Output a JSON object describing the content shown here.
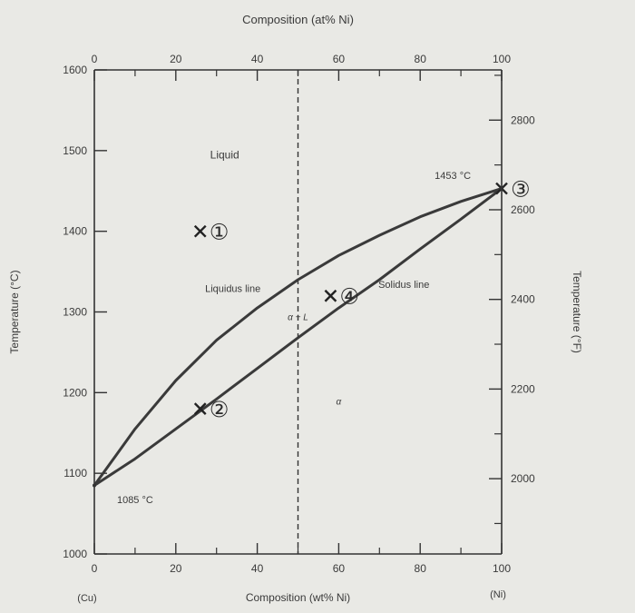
{
  "chart_data": {
    "type": "line",
    "title": "",
    "top_axis": {
      "label": "Composition (at% Ni)",
      "ticks": [
        0,
        20,
        40,
        60,
        80,
        100
      ],
      "tick_labels": [
        "0",
        "20",
        "40",
        "60",
        "80",
        "100"
      ]
    },
    "bottom_axis": {
      "label": "Composition (wt% Ni)",
      "ticks": [
        0,
        20,
        40,
        60,
        80,
        100
      ],
      "tick_labels": [
        "0",
        "20",
        "40",
        "60",
        "80",
        "100"
      ],
      "end_labels": {
        "left": "(Cu)",
        "right": "(Ni)"
      },
      "xlim": [
        0,
        100
      ]
    },
    "left_axis": {
      "label": "Temperature (°C)",
      "ticks": [
        1000,
        1100,
        1200,
        1300,
        1400,
        1500,
        1600
      ],
      "tick_labels": [
        "1000",
        "1100",
        "1200",
        "1300",
        "1400",
        "1500",
        "1600"
      ],
      "ylim": [
        1000,
        1600
      ]
    },
    "right_axis": {
      "label": "Temperature (°F)",
      "ticks": [
        2000,
        2200,
        2400,
        2600,
        2800
      ],
      "tick_labels": [
        "2000",
        "2200",
        "2400",
        "2600",
        "2800"
      ]
    },
    "series": [
      {
        "name": "Liquidus line",
        "x": [
          0,
          10,
          20,
          30,
          40,
          50,
          60,
          70,
          80,
          90,
          100
        ],
        "y": [
          1085,
          1155,
          1215,
          1265,
          1305,
          1340,
          1370,
          1395,
          1418,
          1437,
          1453
        ]
      },
      {
        "name": "Solidus line",
        "x": [
          0,
          10,
          20,
          30,
          40,
          50,
          60,
          70,
          80,
          90,
          100
        ],
        "y": [
          1085,
          1118,
          1155,
          1192,
          1230,
          1268,
          1305,
          1340,
          1378,
          1415,
          1453
        ]
      }
    ],
    "reference_line": {
      "x": 50,
      "style": "dashed"
    },
    "region_labels": [
      {
        "text": "Liquid",
        "x": 32,
        "y": 1490
      },
      {
        "text": "α + L",
        "x": 50,
        "y": 1290
      },
      {
        "text": "α",
        "x": 60,
        "y": 1185
      }
    ],
    "annotations": [
      {
        "text": "1453 °C",
        "x": 88,
        "y": 1465
      },
      {
        "text": "1085 °C",
        "x": 10,
        "y": 1063
      },
      {
        "text": "Liquidus line",
        "x": 34,
        "y": 1325
      },
      {
        "text": "Solidus line",
        "x": 76,
        "y": 1330
      }
    ],
    "points": [
      {
        "label": "①",
        "x": 26,
        "y": 1400
      },
      {
        "label": "②",
        "x": 26,
        "y": 1180
      },
      {
        "label": "③",
        "x": 100,
        "y": 1453
      },
      {
        "label": "④",
        "x": 58,
        "y": 1320
      }
    ],
    "grid": false,
    "legend": "none"
  }
}
